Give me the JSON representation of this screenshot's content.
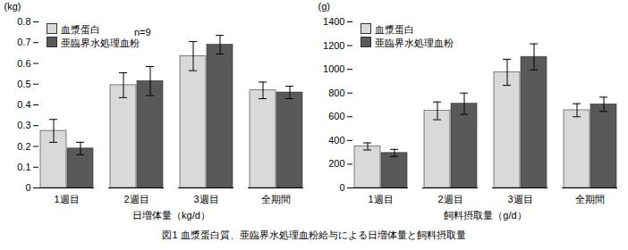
{
  "caption": "図1  血漿蛋白質、亜臨界水処理血粉給与による日増体量と飼料摂取量",
  "chart_data": [
    {
      "type": "bar",
      "xlabel": "日増体量（kg/d）",
      "ylabel": "(kg)",
      "categories": [
        "1週目",
        "2週目",
        "3週目",
        "全期間"
      ],
      "series": [
        {
          "name": "血漿蛋白",
          "color": "#d9d9d9",
          "values": [
            0.275,
            0.495,
            0.635,
            0.47
          ],
          "errors": [
            0.055,
            0.06,
            0.07,
            0.04
          ]
        },
        {
          "name": "亜臨界水処理血粉",
          "color": "#595959",
          "values": [
            0.19,
            0.515,
            0.69,
            0.46
          ],
          "errors": [
            0.03,
            0.07,
            0.045,
            0.03
          ]
        }
      ],
      "ylim": [
        0,
        0.8
      ],
      "yticks": [
        0,
        0.1,
        0.2,
        0.3,
        0.4,
        0.5,
        0.6,
        0.7,
        0.8
      ],
      "legend": "top-left",
      "grid": false,
      "annotations": [
        {
          "text": "n=9"
        }
      ]
    },
    {
      "type": "bar",
      "xlabel": "飼料摂取量（g/d）",
      "ylabel": "(g)",
      "categories": [
        "1週目",
        "2週目",
        "3週目",
        "全期間"
      ],
      "series": [
        {
          "name": "血漿蛋白",
          "color": "#d9d9d9",
          "values": [
            350,
            650,
            975,
            655
          ],
          "errors": [
            30,
            75,
            110,
            55
          ]
        },
        {
          "name": "亜臨界水処理血粉",
          "color": "#595959",
          "values": [
            295,
            710,
            1105,
            705
          ],
          "errors": [
            30,
            90,
            110,
            60
          ]
        }
      ],
      "ylim": [
        0,
        1400
      ],
      "yticks": [
        0,
        200,
        400,
        600,
        800,
        1000,
        1200,
        1400
      ],
      "legend": "top-left",
      "grid": false
    }
  ]
}
